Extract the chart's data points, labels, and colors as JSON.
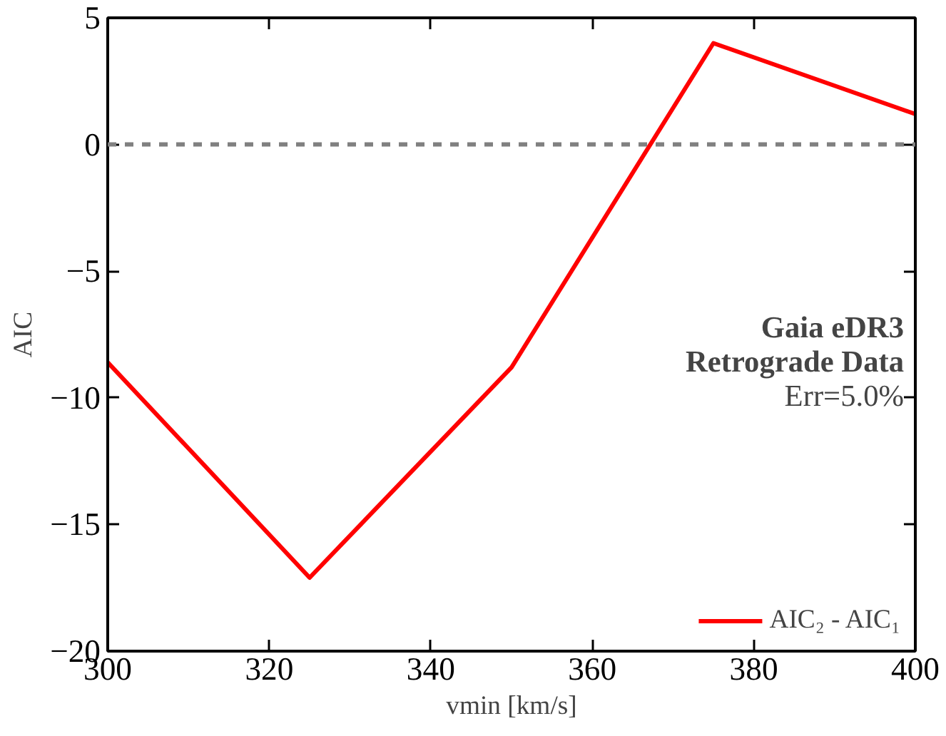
{
  "chart_data": {
    "type": "line",
    "xlabel": "vmin [km/s]",
    "ylabel": "AIC",
    "x": [
      300,
      325,
      350,
      375,
      400
    ],
    "series": [
      {
        "name": "AIC₂ - AIC₁",
        "color": "#ff0000",
        "values": [
          -8.6,
          -17.1,
          -8.8,
          4.0,
          1.2
        ]
      }
    ],
    "xlim": [
      300,
      400
    ],
    "xticks": [
      300,
      320,
      340,
      360,
      380,
      400
    ],
    "ylim": [
      -20,
      5
    ],
    "yticks": [
      -20,
      -15,
      -10,
      -5,
      0,
      5
    ],
    "ref_lines": [
      {
        "axis": "y",
        "value": 0,
        "color": "#808080",
        "line_style": "dashed"
      }
    ],
    "annotations": [
      "Gaia eDR3",
      "Retrograde Data",
      "Err=5.0%"
    ],
    "legend": "bottom right",
    "grid": false,
    "line_style": "solid"
  }
}
